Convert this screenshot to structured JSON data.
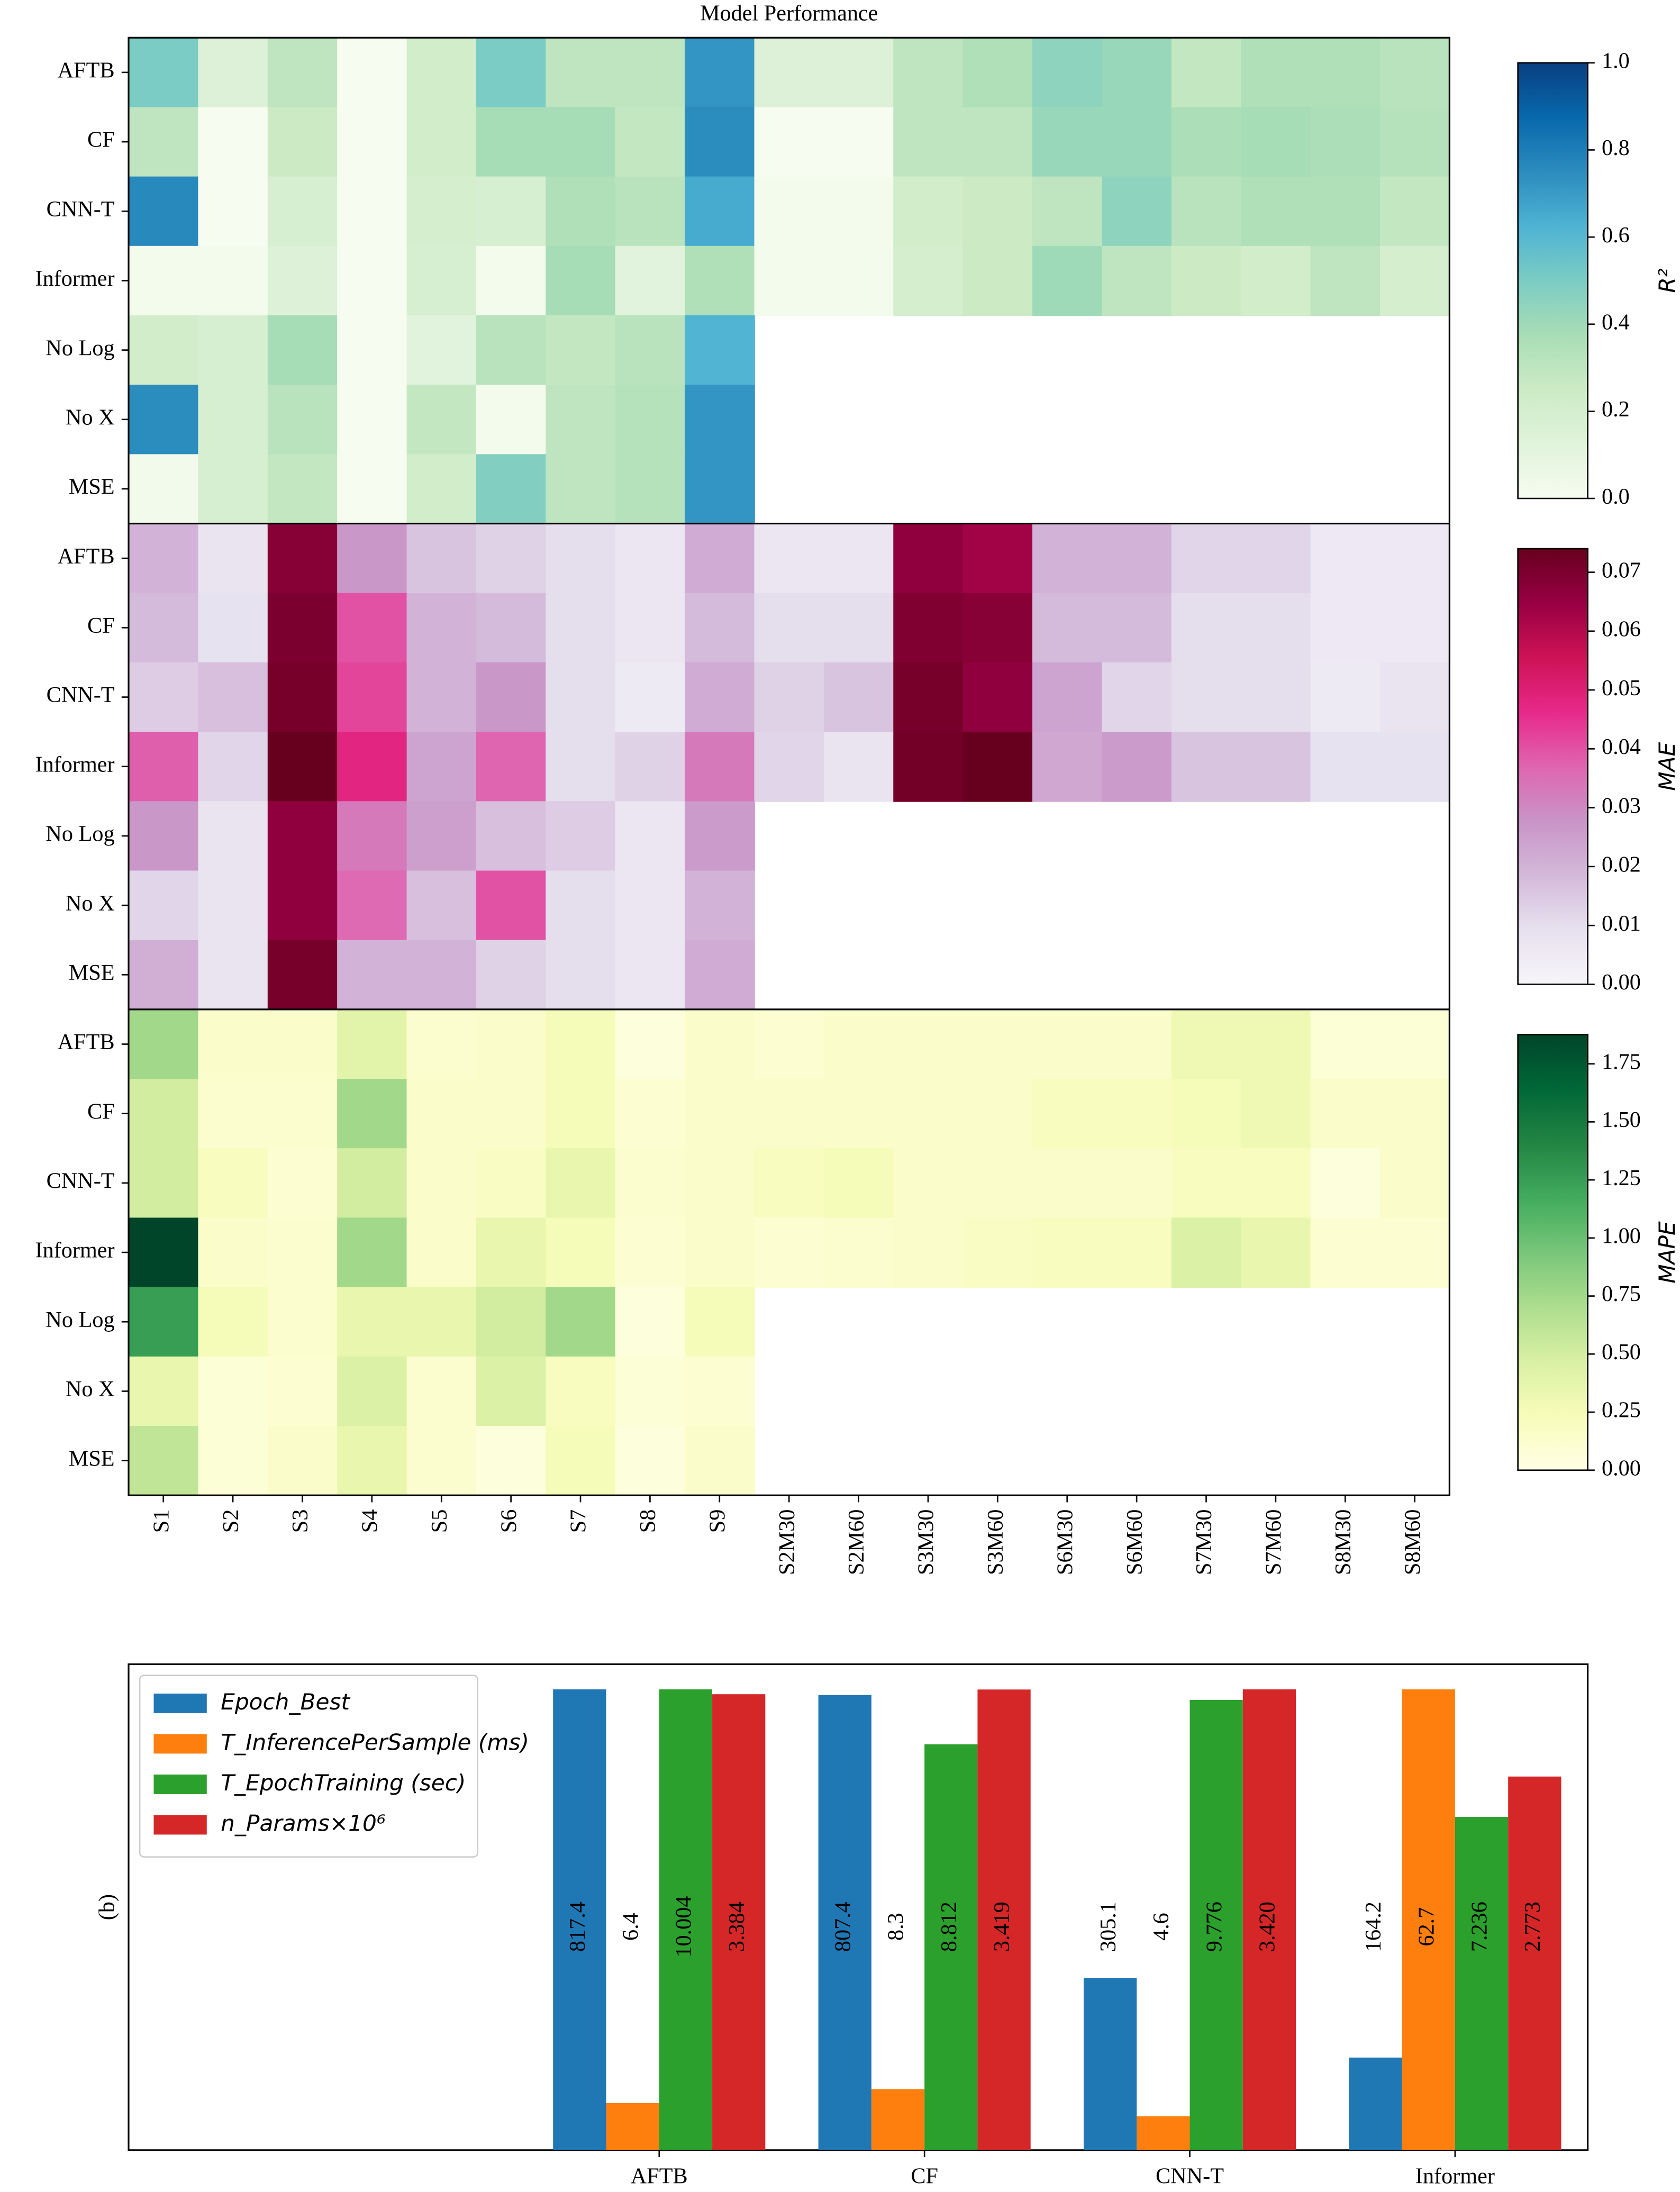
{
  "chart_data": [
    {
      "type": "heatmap",
      "title": "Model Performance",
      "colorbar_label": "R²",
      "colormap": "GnBu",
      "rows": [
        "AFTB",
        "CF",
        "CNN-T",
        "Informer",
        "No Log",
        "No X",
        "MSE"
      ],
      "values": [
        [
          0.5,
          0.15,
          0.3,
          0.0,
          0.22,
          0.5,
          0.3,
          0.3,
          0.72,
          0.15,
          0.15,
          0.3,
          0.35,
          0.45,
          0.42,
          0.28,
          0.35,
          0.35,
          0.32
        ],
        [
          0.3,
          0.0,
          0.25,
          0.0,
          0.22,
          0.38,
          0.38,
          0.28,
          0.75,
          0.0,
          0.0,
          0.3,
          0.3,
          0.42,
          0.42,
          0.36,
          0.38,
          0.36,
          0.33
        ],
        [
          0.76,
          0.0,
          0.18,
          0.0,
          0.2,
          0.18,
          0.35,
          0.32,
          0.65,
          0.02,
          0.02,
          0.22,
          0.25,
          0.3,
          0.45,
          0.32,
          0.35,
          0.35,
          0.28
        ],
        [
          0.02,
          0.02,
          0.15,
          0.0,
          0.18,
          0.02,
          0.38,
          0.12,
          0.35,
          0.02,
          0.02,
          0.2,
          0.25,
          0.4,
          0.3,
          0.25,
          0.22,
          0.3,
          0.2
        ],
        [
          0.22,
          0.18,
          0.38,
          0.0,
          0.12,
          0.32,
          0.28,
          0.32,
          0.62,
          null,
          null,
          null,
          null,
          null,
          null,
          null,
          null,
          null,
          null
        ],
        [
          0.75,
          0.18,
          0.32,
          0.0,
          0.28,
          0.02,
          0.3,
          0.33,
          0.72,
          null,
          null,
          null,
          null,
          null,
          null,
          null,
          null,
          null,
          null
        ],
        [
          0.03,
          0.18,
          0.28,
          0.0,
          0.22,
          0.48,
          0.3,
          0.33,
          0.72,
          null,
          null,
          null,
          null,
          null,
          null,
          null,
          null,
          null,
          null
        ]
      ],
      "zlim": [
        0,
        1
      ],
      "zticks": [
        {
          "value": 0,
          "label": "0.0"
        },
        {
          "value": 0.2,
          "label": "0.2"
        },
        {
          "value": 0.4,
          "label": "0.4"
        },
        {
          "value": 0.6,
          "label": "0.6"
        },
        {
          "value": 0.8,
          "label": "0.8"
        },
        {
          "value": 1,
          "label": "1.0"
        }
      ]
    },
    {
      "type": "heatmap",
      "colorbar_label": "MAE",
      "colormap": "PuRd",
      "rows": [
        "AFTB",
        "CF",
        "CNN-T",
        "Informer",
        "No Log",
        "No X",
        "MSE"
      ],
      "values": [
        [
          0.02,
          0.008,
          0.068,
          0.027,
          0.016,
          0.013,
          0.01,
          0.007,
          0.022,
          0.007,
          0.007,
          0.066,
          0.063,
          0.02,
          0.02,
          0.012,
          0.012,
          0.006,
          0.006
        ],
        [
          0.018,
          0.009,
          0.07,
          0.04,
          0.02,
          0.018,
          0.01,
          0.007,
          0.018,
          0.01,
          0.01,
          0.069,
          0.068,
          0.018,
          0.018,
          0.01,
          0.01,
          0.006,
          0.006
        ],
        [
          0.014,
          0.017,
          0.071,
          0.042,
          0.02,
          0.027,
          0.01,
          0.005,
          0.022,
          0.013,
          0.016,
          0.071,
          0.066,
          0.024,
          0.012,
          0.01,
          0.01,
          0.005,
          0.008
        ],
        [
          0.038,
          0.012,
          0.074,
          0.048,
          0.024,
          0.037,
          0.01,
          0.013,
          0.033,
          0.012,
          0.008,
          0.072,
          0.074,
          0.023,
          0.026,
          0.016,
          0.016,
          0.009,
          0.009
        ],
        [
          0.027,
          0.008,
          0.066,
          0.033,
          0.025,
          0.017,
          0.014,
          0.007,
          0.026,
          null,
          null,
          null,
          null,
          null,
          null,
          null,
          null,
          null,
          null
        ],
        [
          0.012,
          0.008,
          0.066,
          0.036,
          0.017,
          0.04,
          0.01,
          0.007,
          0.02,
          null,
          null,
          null,
          null,
          null,
          null,
          null,
          null,
          null,
          null
        ],
        [
          0.021,
          0.008,
          0.071,
          0.02,
          0.02,
          0.013,
          0.01,
          0.007,
          0.022,
          null,
          null,
          null,
          null,
          null,
          null,
          null,
          null,
          null,
          null
        ]
      ],
      "zlim": [
        0,
        0.074
      ],
      "zticks": [
        {
          "value": 0,
          "label": "0.00"
        },
        {
          "value": 0.01,
          "label": "0.01"
        },
        {
          "value": 0.02,
          "label": "0.02"
        },
        {
          "value": 0.03,
          "label": "0.03"
        },
        {
          "value": 0.04,
          "label": "0.04"
        },
        {
          "value": 0.05,
          "label": "0.05"
        },
        {
          "value": 0.06,
          "label": "0.06"
        },
        {
          "value": 0.07,
          "label": "0.07"
        }
      ]
    },
    {
      "type": "heatmap",
      "colorbar_label": "MAPE",
      "colormap": "YlGn",
      "rows": [
        "AFTB",
        "CF",
        "CNN-T",
        "Informer",
        "No Log",
        "No X",
        "MSE"
      ],
      "columns": [
        "S1",
        "S2",
        "S3",
        "S4",
        "S5",
        "S6",
        "S7",
        "S8",
        "S9",
        "S2M30",
        "S2M60",
        "S3M30",
        "S3M60",
        "S6M30",
        "S6M60",
        "S7M30",
        "S7M60",
        "S8M30",
        "S8M60"
      ],
      "values": [
        [
          0.75,
          0.15,
          0.15,
          0.4,
          0.12,
          0.15,
          0.25,
          0.05,
          0.15,
          0.1,
          0.15,
          0.15,
          0.15,
          0.15,
          0.15,
          0.3,
          0.3,
          0.08,
          0.08
        ],
        [
          0.5,
          0.12,
          0.12,
          0.75,
          0.15,
          0.15,
          0.25,
          0.1,
          0.15,
          0.15,
          0.15,
          0.15,
          0.15,
          0.2,
          0.2,
          0.25,
          0.3,
          0.15,
          0.15
        ],
        [
          0.5,
          0.2,
          0.1,
          0.5,
          0.15,
          0.18,
          0.35,
          0.12,
          0.15,
          0.2,
          0.25,
          0.15,
          0.15,
          0.15,
          0.15,
          0.2,
          0.2,
          0.05,
          0.15
        ],
        [
          1.88,
          0.15,
          0.12,
          0.75,
          0.15,
          0.35,
          0.25,
          0.1,
          0.15,
          0.1,
          0.12,
          0.15,
          0.18,
          0.2,
          0.2,
          0.45,
          0.35,
          0.1,
          0.1
        ],
        [
          1.25,
          0.25,
          0.12,
          0.35,
          0.35,
          0.5,
          0.75,
          0.05,
          0.25,
          null,
          null,
          null,
          null,
          null,
          null,
          null,
          null,
          null,
          null
        ],
        [
          0.35,
          0.08,
          0.1,
          0.45,
          0.12,
          0.45,
          0.2,
          0.08,
          0.1,
          null,
          null,
          null,
          null,
          null,
          null,
          null,
          null,
          null,
          null
        ],
        [
          0.6,
          0.08,
          0.15,
          0.35,
          0.12,
          0.05,
          0.25,
          0.05,
          0.15,
          null,
          null,
          null,
          null,
          null,
          null,
          null,
          null,
          null,
          null
        ]
      ],
      "zlim": [
        0,
        1.876
      ],
      "zticks": [
        {
          "value": 0,
          "label": "0.00"
        },
        {
          "value": 0.25,
          "label": "0.25"
        },
        {
          "value": 0.5,
          "label": "0.50"
        },
        {
          "value": 0.75,
          "label": "0.75"
        },
        {
          "value": 1,
          "label": "1.00"
        },
        {
          "value": 1.25,
          "label": "1.25"
        },
        {
          "value": 1.5,
          "label": "1.50"
        },
        {
          "value": 1.75,
          "label": "1.75"
        }
      ]
    },
    {
      "type": "bar",
      "label": "(b)",
      "legend": "upper left",
      "categories": [
        "AFTB",
        "CF",
        "CNN-T",
        "Informer"
      ],
      "series": [
        {
          "name": "Epoch_Best",
          "color": "#1f77b4",
          "values": [
            817.4,
            807.4,
            305.1,
            164.2
          ],
          "value_labels": [
            "817.4",
            "807.4",
            "305.1",
            "164.2"
          ]
        },
        {
          "name": "T_InferencePerSample (ms)",
          "color": "#ff7f0e",
          "values": [
            6.4,
            8.3,
            4.6,
            62.7
          ],
          "value_labels": [
            "6.4",
            "8.3",
            "4.6",
            "62.7"
          ]
        },
        {
          "name": "T_EpochTraining (sec)",
          "color": "#2ca02c",
          "values": [
            10.004,
            8.812,
            9.776,
            7.236
          ],
          "value_labels": [
            "10.004",
            "8.812",
            "9.776",
            "7.236"
          ]
        },
        {
          "name": "n_Params×10⁶",
          "color": "#d62728",
          "values": [
            3.384,
            3.419,
            3.42,
            2.773
          ],
          "value_labels": [
            "3.384",
            "3.419",
            "3.420",
            "2.773"
          ]
        }
      ]
    }
  ]
}
